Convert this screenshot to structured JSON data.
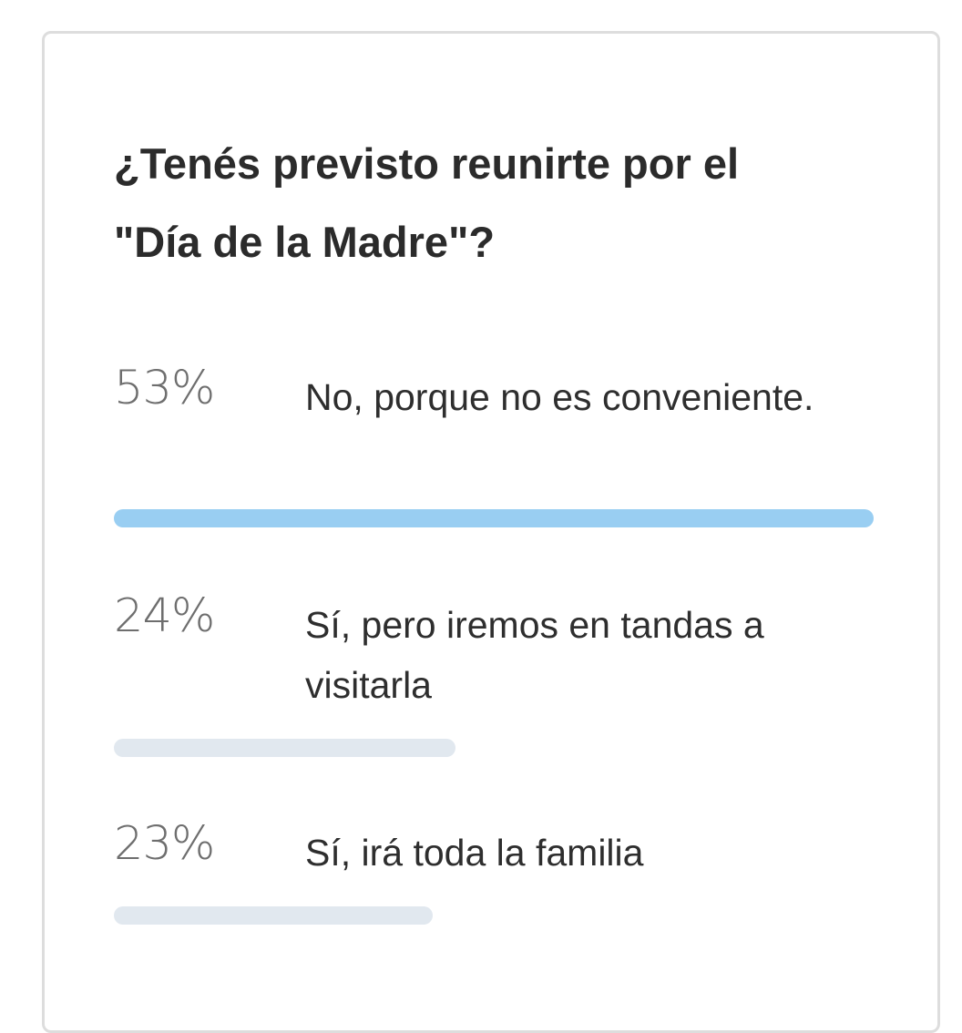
{
  "poll": {
    "question": "¿Tenés previsto reunirte por el \"Día de la Madre\"?",
    "options": [
      {
        "percent_label": "53%",
        "text": "No, porque no es conveniente.",
        "share": 1.0,
        "color": "#99cef2"
      },
      {
        "percent_label": "24%",
        "text": "Sí, pero iremos en tandas a visitarla",
        "share": 0.45,
        "color": "#e1e8ef"
      },
      {
        "percent_label": "23%",
        "text": "Sí, irá toda la familia",
        "share": 0.42,
        "color": "#e1e8ef"
      }
    ]
  }
}
